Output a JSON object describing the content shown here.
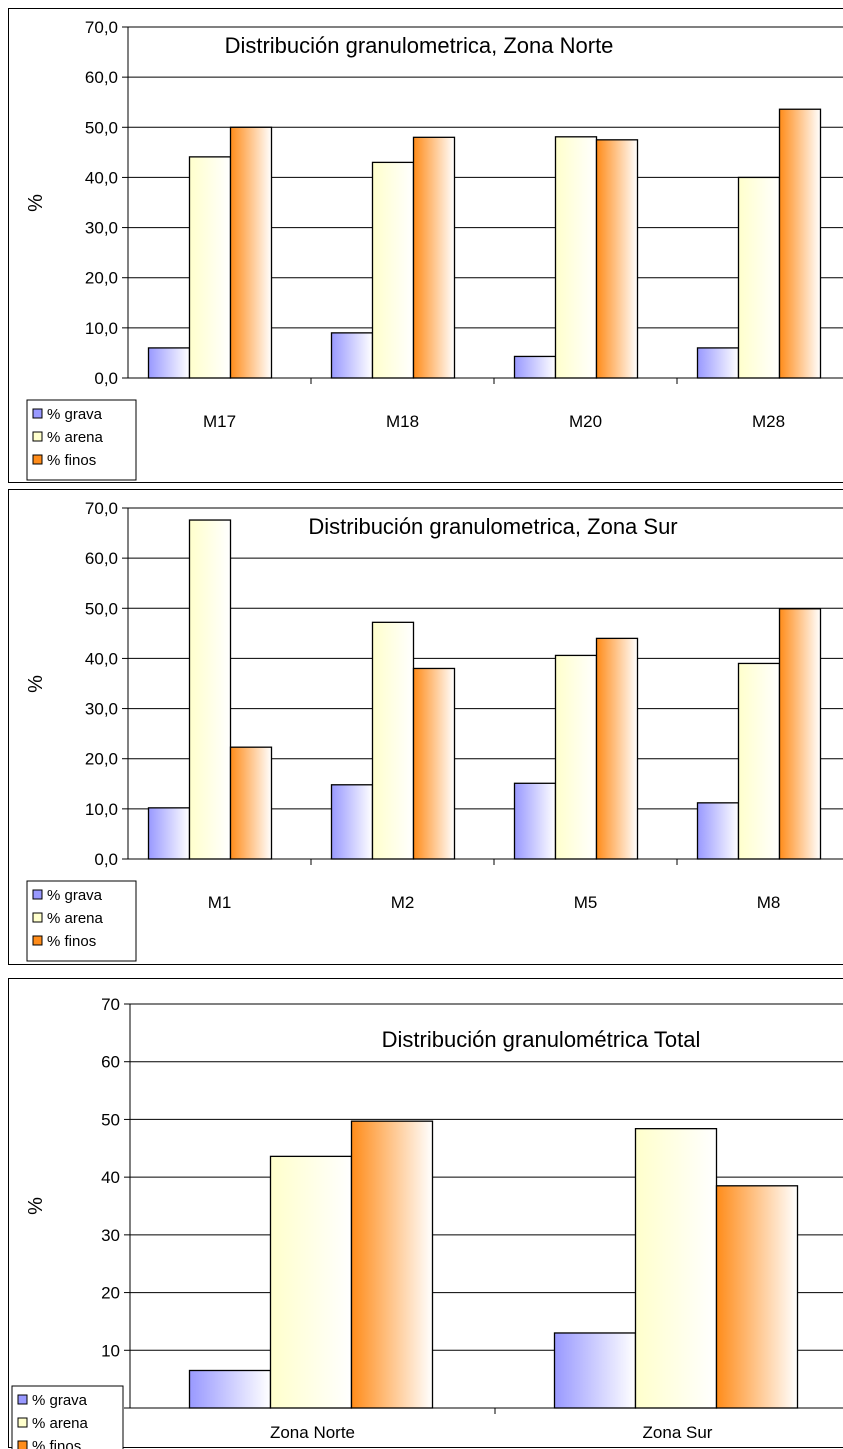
{
  "chart_data": [
    {
      "type": "bar",
      "title": "Distribución granulometrica, Zona Norte",
      "ylabel": "%",
      "ylim": [
        0,
        70
      ],
      "yticks": [
        "0,0",
        "10,0",
        "20,0",
        "30,0",
        "40,0",
        "50,0",
        "60,0",
        "70,0"
      ],
      "categories": [
        "M17",
        "M18",
        "M20",
        "M28"
      ],
      "series": [
        {
          "name": "% grava",
          "values": [
            6.0,
            9.0,
            4.3,
            6.0
          ]
        },
        {
          "name": "% arena",
          "values": [
            44.1,
            43.0,
            48.1,
            40.0
          ]
        },
        {
          "name": "% finos",
          "values": [
            50.0,
            48.0,
            47.5,
            53.6
          ]
        }
      ],
      "grid": true,
      "legend": "bottom-left"
    },
    {
      "type": "bar",
      "title": "Distribución granulometrica, Zona Sur",
      "ylabel": "%",
      "ylim": [
        0,
        70
      ],
      "yticks": [
        "0,0",
        "10,0",
        "20,0",
        "30,0",
        "40,0",
        "50,0",
        "60,0",
        "70,0"
      ],
      "categories": [
        "M1",
        "M2",
        "M5",
        "M8"
      ],
      "series": [
        {
          "name": "% grava",
          "values": [
            10.2,
            14.8,
            15.1,
            11.2
          ]
        },
        {
          "name": "% arena",
          "values": [
            67.6,
            47.2,
            40.6,
            39.0
          ]
        },
        {
          "name": "% finos",
          "values": [
            22.3,
            38.0,
            44.0,
            49.9
          ]
        }
      ],
      "grid": true,
      "legend": "bottom-left"
    },
    {
      "type": "bar",
      "title": "Distribución granulométrica Total",
      "ylabel": "%",
      "ylim": [
        0,
        70
      ],
      "yticks": [
        "10",
        "20",
        "30",
        "40",
        "50",
        "60",
        "70"
      ],
      "categories": [
        "Zona Norte",
        "Zona Sur"
      ],
      "series": [
        {
          "name": "% grava",
          "values": [
            6.5,
            13.0
          ]
        },
        {
          "name": "% arena",
          "values": [
            43.6,
            48.4
          ]
        },
        {
          "name": "% finos",
          "values": [
            49.7,
            38.5
          ]
        }
      ],
      "grid": true,
      "legend": "bottom-left"
    }
  ],
  "colors": {
    "grava": "#9999ff",
    "arena": "#ffffcc",
    "finos": "#ff8c1a"
  }
}
